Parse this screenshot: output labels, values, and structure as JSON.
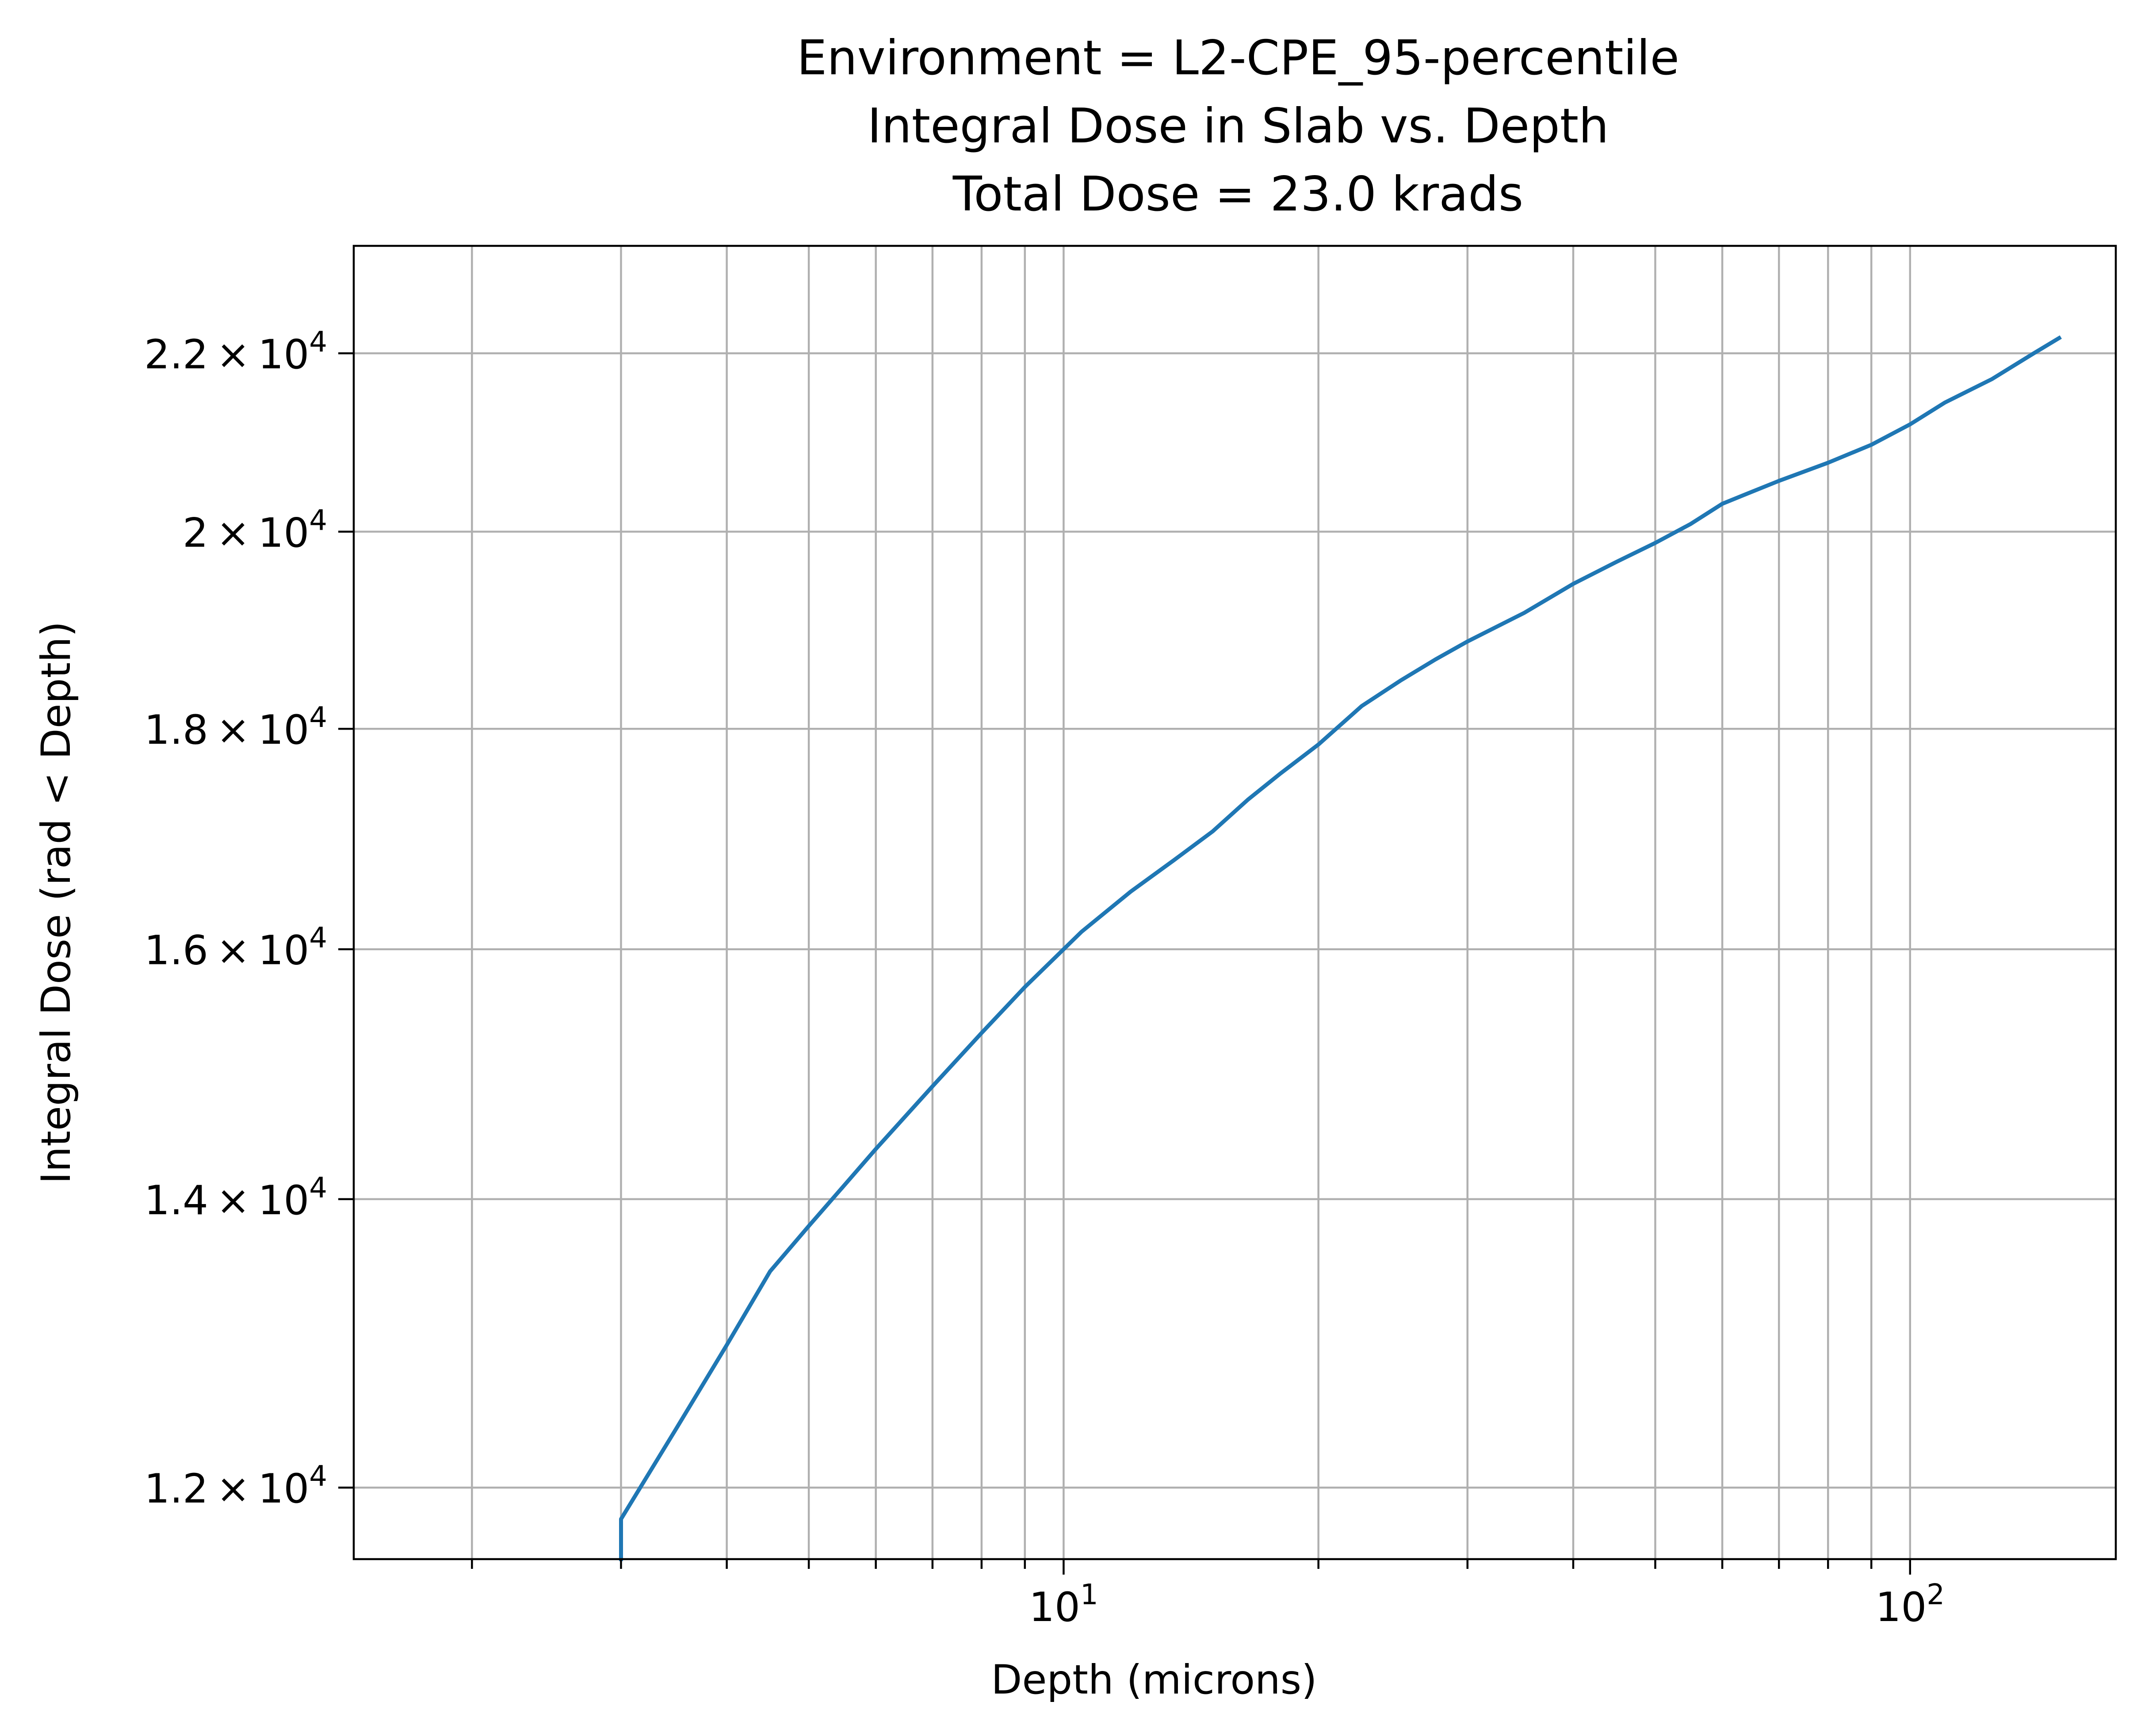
{
  "chart_data": {
    "type": "line",
    "title_lines": [
      "Environment = L2-CPE_95-percentile",
      "Integral Dose in Slab vs. Depth",
      "Total Dose = 23.0 krads"
    ],
    "xlabel": "Depth (microns)",
    "ylabel": "Integral Dose (rad < Depth)",
    "xscale": "log",
    "yscale": "log",
    "xlim": [
      1.45,
      175
    ],
    "ylim": [
      11550,
      23300
    ],
    "grid": true,
    "x_major_ticks": [
      {
        "value": 10,
        "base": "10",
        "exp": "1"
      },
      {
        "value": 100,
        "base": "10",
        "exp": "2"
      }
    ],
    "x_minor_ticks": [
      2,
      3,
      4,
      5,
      6,
      7,
      8,
      9,
      20,
      30,
      40,
      50,
      60,
      70,
      80,
      90
    ],
    "y_ticks": [
      {
        "value": 12000,
        "mant": "1.2",
        "exp": "4"
      },
      {
        "value": 14000,
        "mant": "1.4",
        "exp": "4"
      },
      {
        "value": 16000,
        "mant": "1.6",
        "exp": "4"
      },
      {
        "value": 18000,
        "mant": "1.8",
        "exp": "4"
      },
      {
        "value": 20000,
        "mant": "2",
        "exp": "4"
      },
      {
        "value": 22000,
        "mant": "2.2",
        "exp": "4"
      }
    ],
    "series": [
      {
        "color": "#1f77b4",
        "x": [
          3.0,
          3.0,
          3.5,
          4.0,
          4.5,
          5.0,
          5.5,
          6.0,
          7.0,
          8.0,
          9.0,
          10.5,
          12.0,
          13.5,
          15.0,
          16.5,
          18.0,
          20.0,
          22.5,
          25.0,
          27.5,
          30.0,
          35.0,
          40.0,
          45.0,
          50.0,
          55.0,
          60.0,
          65.0,
          70.0,
          80.0,
          90.0,
          100.0,
          110.0,
          125.0,
          140.0,
          150.0
        ],
        "y": [
          11550,
          11800,
          12400,
          12950,
          13470,
          13800,
          14100,
          14380,
          14870,
          15300,
          15680,
          16150,
          16500,
          16780,
          17040,
          17330,
          17570,
          17850,
          18220,
          18470,
          18680,
          18860,
          19150,
          19450,
          19680,
          19880,
          20080,
          20300,
          20430,
          20550,
          20750,
          20950,
          21180,
          21430,
          21700,
          22000,
          22180
        ]
      }
    ]
  }
}
